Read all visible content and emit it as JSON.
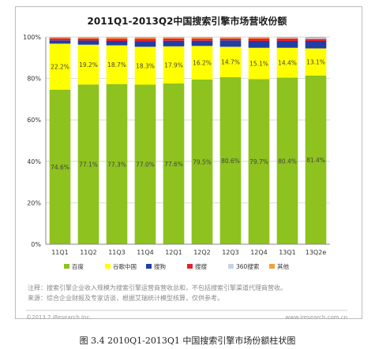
{
  "chart_data": {
    "type": "bar",
    "stacked": true,
    "title": "2011Q1-2013Q2中国搜索引擎市场营收份额",
    "categories": [
      "11Q1",
      "11Q2",
      "11Q3",
      "11Q4",
      "12Q1",
      "12Q2",
      "12Q3",
      "12Q4",
      "13Q1",
      "13Q2e"
    ],
    "y_ticks": [
      "0%",
      "20%",
      "40%",
      "60%",
      "80%",
      "100%"
    ],
    "ylim": [
      0,
      100
    ],
    "grid": true,
    "legend_position": "bottom",
    "series": [
      {
        "name": "百度",
        "color": "#8dc21f",
        "values": [
          74.6,
          77.1,
          77.3,
          77.0,
          77.6,
          79.5,
          80.6,
          79.7,
          80.4,
          81.4
        ],
        "labels": [
          "74.6%",
          "77.1%",
          "77.3%",
          "77.0%",
          "77.6%",
          "79.5%",
          "80.6%",
          "79.7%",
          "80.4%",
          "81.4%"
        ]
      },
      {
        "name": "谷歌中国",
        "color": "#ffff00",
        "values": [
          22.2,
          19.2,
          18.7,
          18.3,
          17.9,
          16.2,
          14.7,
          15.1,
          14.4,
          13.1
        ],
        "labels": [
          "22.2%",
          "19.2%",
          "18.7%",
          "18.3%",
          "17.9%",
          "16.2%",
          "14.7%",
          "15.1%",
          "14.4%",
          "13.1%"
        ]
      },
      {
        "name": "搜狗",
        "color": "#1f3ea8",
        "values": [
          1.6,
          2.0,
          2.1,
          2.6,
          2.7,
          2.5,
          3.1,
          3.3,
          3.3,
          3.6
        ]
      },
      {
        "name": "搜搜",
        "color": "#e8202a",
        "values": [
          1.0,
          1.0,
          1.1,
          1.3,
          1.1,
          1.0,
          0.9,
          1.2,
          1.2,
          1.0
        ]
      },
      {
        "name": "360搜索",
        "color": "#c7d4e6",
        "values": [
          0,
          0,
          0,
          0,
          0,
          0,
          0,
          0,
          0.2,
          0.5
        ]
      },
      {
        "name": "其他",
        "color": "#f2a23a",
        "values": [
          0.6,
          0.7,
          0.8,
          0.8,
          0.7,
          0.8,
          0.7,
          0.7,
          0.5,
          0.4
        ]
      }
    ]
  },
  "notes": {
    "line1": "注释：搜索引擎企业收入规模为搜索引擎运营商营收总和，不包括搜索引擎渠道代理商营收。",
    "line2": "来源：综合企业财报及专家访谈，根据艾瑞统计模型核算，仅供参考。"
  },
  "footer": {
    "left": "©2013.7 iResearch Inc.",
    "right": "www.iresearch.com.cn"
  },
  "caption": "图 3.4    2010Q1-2013Q1 中国搜索引擎市场份额柱状图"
}
